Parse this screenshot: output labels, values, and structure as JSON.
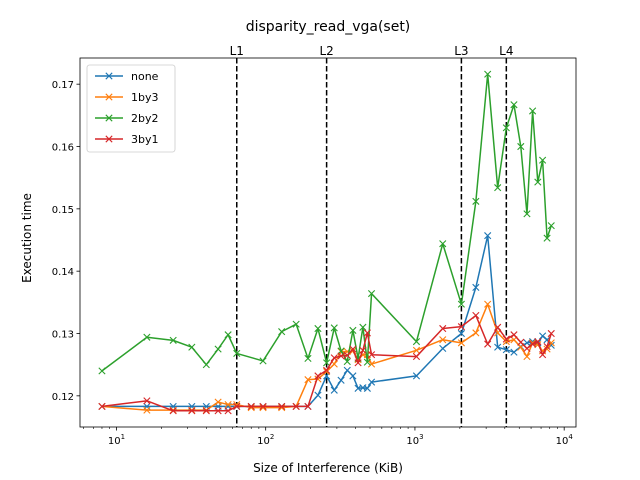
{
  "chart_data": {
    "type": "line",
    "title": "disparity_read_vga(set)",
    "xlabel": "Size of Interference (KiB)",
    "ylabel": "Execution time",
    "xscale": "log",
    "xlim": [
      5.7,
      12000
    ],
    "ylim": [
      0.115,
      0.1742
    ],
    "xticks": [
      {
        "value": 10,
        "base": "10",
        "exp": "1"
      },
      {
        "value": 100,
        "base": "10",
        "exp": "2"
      },
      {
        "value": 1000,
        "base": "10",
        "exp": "3"
      },
      {
        "value": 10000,
        "base": "10",
        "exp": "4"
      }
    ],
    "yticks": [
      0.12,
      0.13,
      0.14,
      0.15,
      0.16,
      0.17
    ],
    "ytick_labels": [
      "0.12",
      "0.13",
      "0.14",
      "0.15",
      "0.16",
      "0.17"
    ],
    "grid": false,
    "legend_position": "top-left",
    "marker": "x",
    "vlines": [
      {
        "label": "L1",
        "x": 64
      },
      {
        "label": "L2",
        "x": 256
      },
      {
        "label": "L3",
        "x": 2048
      },
      {
        "label": "L4",
        "x": 4096
      }
    ],
    "series": [
      {
        "name": "none",
        "color": "#1f77b4",
        "points": [
          [
            8,
            0.1183
          ],
          [
            16,
            0.1183
          ],
          [
            24,
            0.1183
          ],
          [
            32,
            0.1183
          ],
          [
            40,
            0.1183
          ],
          [
            48,
            0.1183
          ],
          [
            56,
            0.1183
          ],
          [
            64,
            0.1183
          ],
          [
            80,
            0.1183
          ],
          [
            96,
            0.1183
          ],
          [
            128,
            0.1183
          ],
          [
            160,
            0.1183
          ],
          [
            192,
            0.1183
          ],
          [
            224,
            0.1201
          ],
          [
            256,
            0.1232
          ],
          [
            288,
            0.1209
          ],
          [
            320,
            0.1225
          ],
          [
            352,
            0.1241
          ],
          [
            384,
            0.1232
          ],
          [
            416,
            0.1212
          ],
          [
            448,
            0.1213
          ],
          [
            480,
            0.1212
          ],
          [
            512,
            0.1222
          ],
          [
            1024,
            0.1232
          ],
          [
            1536,
            0.1276
          ],
          [
            2048,
            0.13
          ],
          [
            2560,
            0.1374
          ],
          [
            3072,
            0.1457
          ],
          [
            3584,
            0.1278
          ],
          [
            4096,
            0.1274
          ],
          [
            4608,
            0.127
          ],
          [
            5120,
            0.1279
          ],
          [
            5632,
            0.1285
          ],
          [
            6144,
            0.1287
          ],
          [
            6656,
            0.1285
          ],
          [
            7168,
            0.1296
          ],
          [
            7680,
            0.129
          ],
          [
            8192,
            0.1281
          ]
        ]
      },
      {
        "name": "1by3",
        "color": "#ff7f0e",
        "points": [
          [
            8,
            0.1183
          ],
          [
            16,
            0.1177
          ],
          [
            24,
            0.1177
          ],
          [
            32,
            0.1177
          ],
          [
            40,
            0.1177
          ],
          [
            48,
            0.119
          ],
          [
            56,
            0.1186
          ],
          [
            64,
            0.1186
          ],
          [
            80,
            0.1181
          ],
          [
            96,
            0.1181
          ],
          [
            128,
            0.1181
          ],
          [
            160,
            0.1183
          ],
          [
            192,
            0.1226
          ],
          [
            224,
            0.1227
          ],
          [
            256,
            0.1239
          ],
          [
            288,
            0.1251
          ],
          [
            320,
            0.1271
          ],
          [
            352,
            0.1271
          ],
          [
            384,
            0.1272
          ],
          [
            416,
            0.1258
          ],
          [
            448,
            0.1266
          ],
          [
            480,
            0.1266
          ],
          [
            512,
            0.1251
          ],
          [
            1024,
            0.1273
          ],
          [
            1536,
            0.129
          ],
          [
            2048,
            0.1285
          ],
          [
            2560,
            0.1301
          ],
          [
            3072,
            0.1347
          ],
          [
            3584,
            0.1301
          ],
          [
            4096,
            0.1287
          ],
          [
            4608,
            0.129
          ],
          [
            5120,
            0.1278
          ],
          [
            5632,
            0.1263
          ],
          [
            6144,
            0.1285
          ],
          [
            6656,
            0.1282
          ],
          [
            7168,
            0.1272
          ],
          [
            7680,
            0.1275
          ],
          [
            8192,
            0.1285
          ]
        ]
      },
      {
        "name": "2by2",
        "color": "#2ca02c",
        "points": [
          [
            8,
            0.124
          ],
          [
            16,
            0.1294
          ],
          [
            24,
            0.1289
          ],
          [
            32,
            0.1278
          ],
          [
            40,
            0.125
          ],
          [
            48,
            0.1275
          ],
          [
            56,
            0.1298
          ],
          [
            64,
            0.1268
          ],
          [
            96,
            0.1256
          ],
          [
            128,
            0.1303
          ],
          [
            160,
            0.1315
          ],
          [
            192,
            0.126
          ],
          [
            224,
            0.1308
          ],
          [
            256,
            0.1253
          ],
          [
            288,
            0.1309
          ],
          [
            320,
            0.1272
          ],
          [
            352,
            0.1255
          ],
          [
            384,
            0.1305
          ],
          [
            416,
            0.126
          ],
          [
            448,
            0.131
          ],
          [
            480,
            0.1254
          ],
          [
            512,
            0.1364
          ],
          [
            1024,
            0.1287
          ],
          [
            1536,
            0.1444
          ],
          [
            2048,
            0.1347
          ],
          [
            2560,
            0.1512
          ],
          [
            3072,
            0.1716
          ],
          [
            3584,
            0.1534
          ],
          [
            4096,
            0.163
          ],
          [
            4608,
            0.1667
          ],
          [
            5120,
            0.16
          ],
          [
            5632,
            0.1492
          ],
          [
            6144,
            0.1657
          ],
          [
            6656,
            0.1543
          ],
          [
            7168,
            0.1578
          ],
          [
            7680,
            0.1453
          ],
          [
            8192,
            0.1473
          ]
        ]
      },
      {
        "name": "3by1",
        "color": "#d62728",
        "points": [
          [
            8,
            0.1183
          ],
          [
            16,
            0.1192
          ],
          [
            24,
            0.1176
          ],
          [
            32,
            0.1176
          ],
          [
            40,
            0.1176
          ],
          [
            48,
            0.1176
          ],
          [
            56,
            0.1176
          ],
          [
            64,
            0.1183
          ],
          [
            80,
            0.1183
          ],
          [
            96,
            0.1183
          ],
          [
            128,
            0.1183
          ],
          [
            160,
            0.1183
          ],
          [
            192,
            0.1183
          ],
          [
            224,
            0.1232
          ],
          [
            256,
            0.1241
          ],
          [
            288,
            0.1261
          ],
          [
            320,
            0.1264
          ],
          [
            352,
            0.1265
          ],
          [
            384,
            0.1275
          ],
          [
            416,
            0.1253
          ],
          [
            448,
            0.1273
          ],
          [
            480,
            0.1301
          ],
          [
            512,
            0.1266
          ],
          [
            1024,
            0.1263
          ],
          [
            1536,
            0.1308
          ],
          [
            2048,
            0.1311
          ],
          [
            2560,
            0.1329
          ],
          [
            3072,
            0.1283
          ],
          [
            3584,
            0.131
          ],
          [
            4096,
            0.1291
          ],
          [
            4608,
            0.1298
          ],
          [
            5120,
            0.1286
          ],
          [
            5632,
            0.1276
          ],
          [
            6144,
            0.1283
          ],
          [
            6656,
            0.1287
          ],
          [
            7168,
            0.1266
          ],
          [
            7680,
            0.1279
          ],
          [
            8192,
            0.13
          ]
        ]
      }
    ]
  }
}
